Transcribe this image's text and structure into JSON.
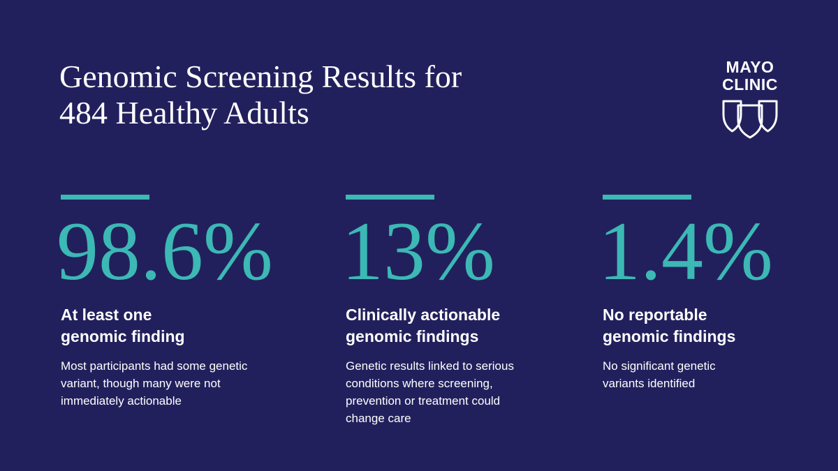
{
  "title": {
    "line1": "Genomic Screening Results for",
    "line2": "484 Healthy Adults"
  },
  "logo": {
    "line1": "MAYO",
    "line2": "CLINIC",
    "icon": "three-shields-icon"
  },
  "colors": {
    "background": "#22205c",
    "accent": "#3cb8b5",
    "text": "#ffffff"
  },
  "stats": [
    {
      "value": "98.6%",
      "heading_lines": [
        "At least one",
        "genomic finding"
      ],
      "description_lines": [
        "Most participants had some genetic",
        "variant, though many were not",
        "immediately actionable"
      ]
    },
    {
      "value": "13%",
      "heading_lines": [
        "Clinically actionable",
        "genomic findings"
      ],
      "description_lines": [
        "Genetic results linked to serious",
        "conditions where screening,",
        "prevention or treatment could",
        "change care"
      ]
    },
    {
      "value": "1.4%",
      "heading_lines": [
        "No reportable",
        "genomic findings"
      ],
      "description_lines": [
        "No significant genetic",
        "variants identified"
      ]
    }
  ]
}
